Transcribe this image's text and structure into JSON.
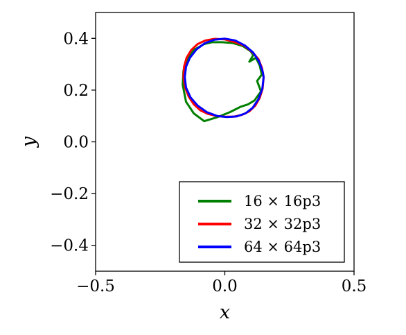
{
  "chart_data": {
    "type": "line",
    "xlabel": "x",
    "ylabel": "y",
    "xlim": [
      -0.5,
      0.5
    ],
    "ylim": [
      -0.5,
      0.5
    ],
    "x_ticks": [
      {
        "value": -0.5,
        "label": "−0.5"
      },
      {
        "value": 0.0,
        "label": "0.0"
      },
      {
        "value": 0.5,
        "label": "0.5"
      }
    ],
    "y_ticks": [
      {
        "value": 0.4,
        "label": "0.4"
      },
      {
        "value": 0.2,
        "label": "0.2"
      },
      {
        "value": 0.0,
        "label": "0.0"
      },
      {
        "value": -0.2,
        "label": "−0.2"
      },
      {
        "value": -0.4,
        "label": "−0.4"
      }
    ],
    "grid": false,
    "legend_position": "lower-right",
    "series": [
      {
        "name": "16 × 16p3",
        "color": "#008000",
        "x": [
          0.12,
          0.135,
          0.143,
          0.125,
          0.14,
          0.115,
          0.09,
          0.06,
          0.02,
          -0.03,
          -0.08,
          -0.12,
          -0.15,
          -0.163,
          -0.16,
          -0.145,
          -0.12,
          -0.08,
          -0.05,
          -0.01,
          0.03,
          0.07,
          0.1,
          0.11,
          0.095,
          0.12
        ],
        "y": [
          0.325,
          0.295,
          0.26,
          0.235,
          0.195,
          0.16,
          0.145,
          0.135,
          0.115,
          0.095,
          0.08,
          0.11,
          0.155,
          0.22,
          0.275,
          0.32,
          0.355,
          0.378,
          0.385,
          0.385,
          0.382,
          0.37,
          0.35,
          0.335,
          0.31,
          0.325
        ]
      },
      {
        "name": "32 × 32p3",
        "color": "#ff0000",
        "x": [
          0.15,
          0.146,
          0.135,
          0.118,
          0.095,
          0.066,
          0.033,
          0.0,
          -0.033,
          -0.066,
          -0.095,
          -0.12,
          -0.14,
          -0.154,
          -0.16,
          -0.158,
          -0.148,
          -0.13,
          -0.105,
          -0.075,
          -0.04,
          0.0,
          0.04,
          0.075,
          0.105,
          0.13,
          0.144,
          0.15
        ],
        "y": [
          0.25,
          0.205,
          0.17,
          0.14,
          0.118,
          0.104,
          0.097,
          0.097,
          0.1,
          0.108,
          0.122,
          0.145,
          0.175,
          0.21,
          0.25,
          0.29,
          0.325,
          0.355,
          0.378,
          0.392,
          0.398,
          0.396,
          0.385,
          0.372,
          0.348,
          0.32,
          0.285,
          0.25
        ]
      },
      {
        "name": "64 × 64p3",
        "color": "#0000ff",
        "x": [
          0.15,
          0.145,
          0.13,
          0.108,
          0.08,
          0.045,
          0.008,
          -0.03,
          -0.07,
          -0.105,
          -0.133,
          -0.15,
          -0.155,
          -0.15,
          -0.135,
          -0.11,
          -0.078,
          -0.04,
          0.0,
          0.04,
          0.078,
          0.11,
          0.133,
          0.147,
          0.15
        ],
        "y": [
          0.25,
          0.205,
          0.165,
          0.132,
          0.11,
          0.098,
          0.096,
          0.1,
          0.115,
          0.14,
          0.172,
          0.21,
          0.25,
          0.29,
          0.325,
          0.357,
          0.381,
          0.395,
          0.399,
          0.392,
          0.372,
          0.345,
          0.31,
          0.27,
          0.25
        ]
      }
    ]
  }
}
